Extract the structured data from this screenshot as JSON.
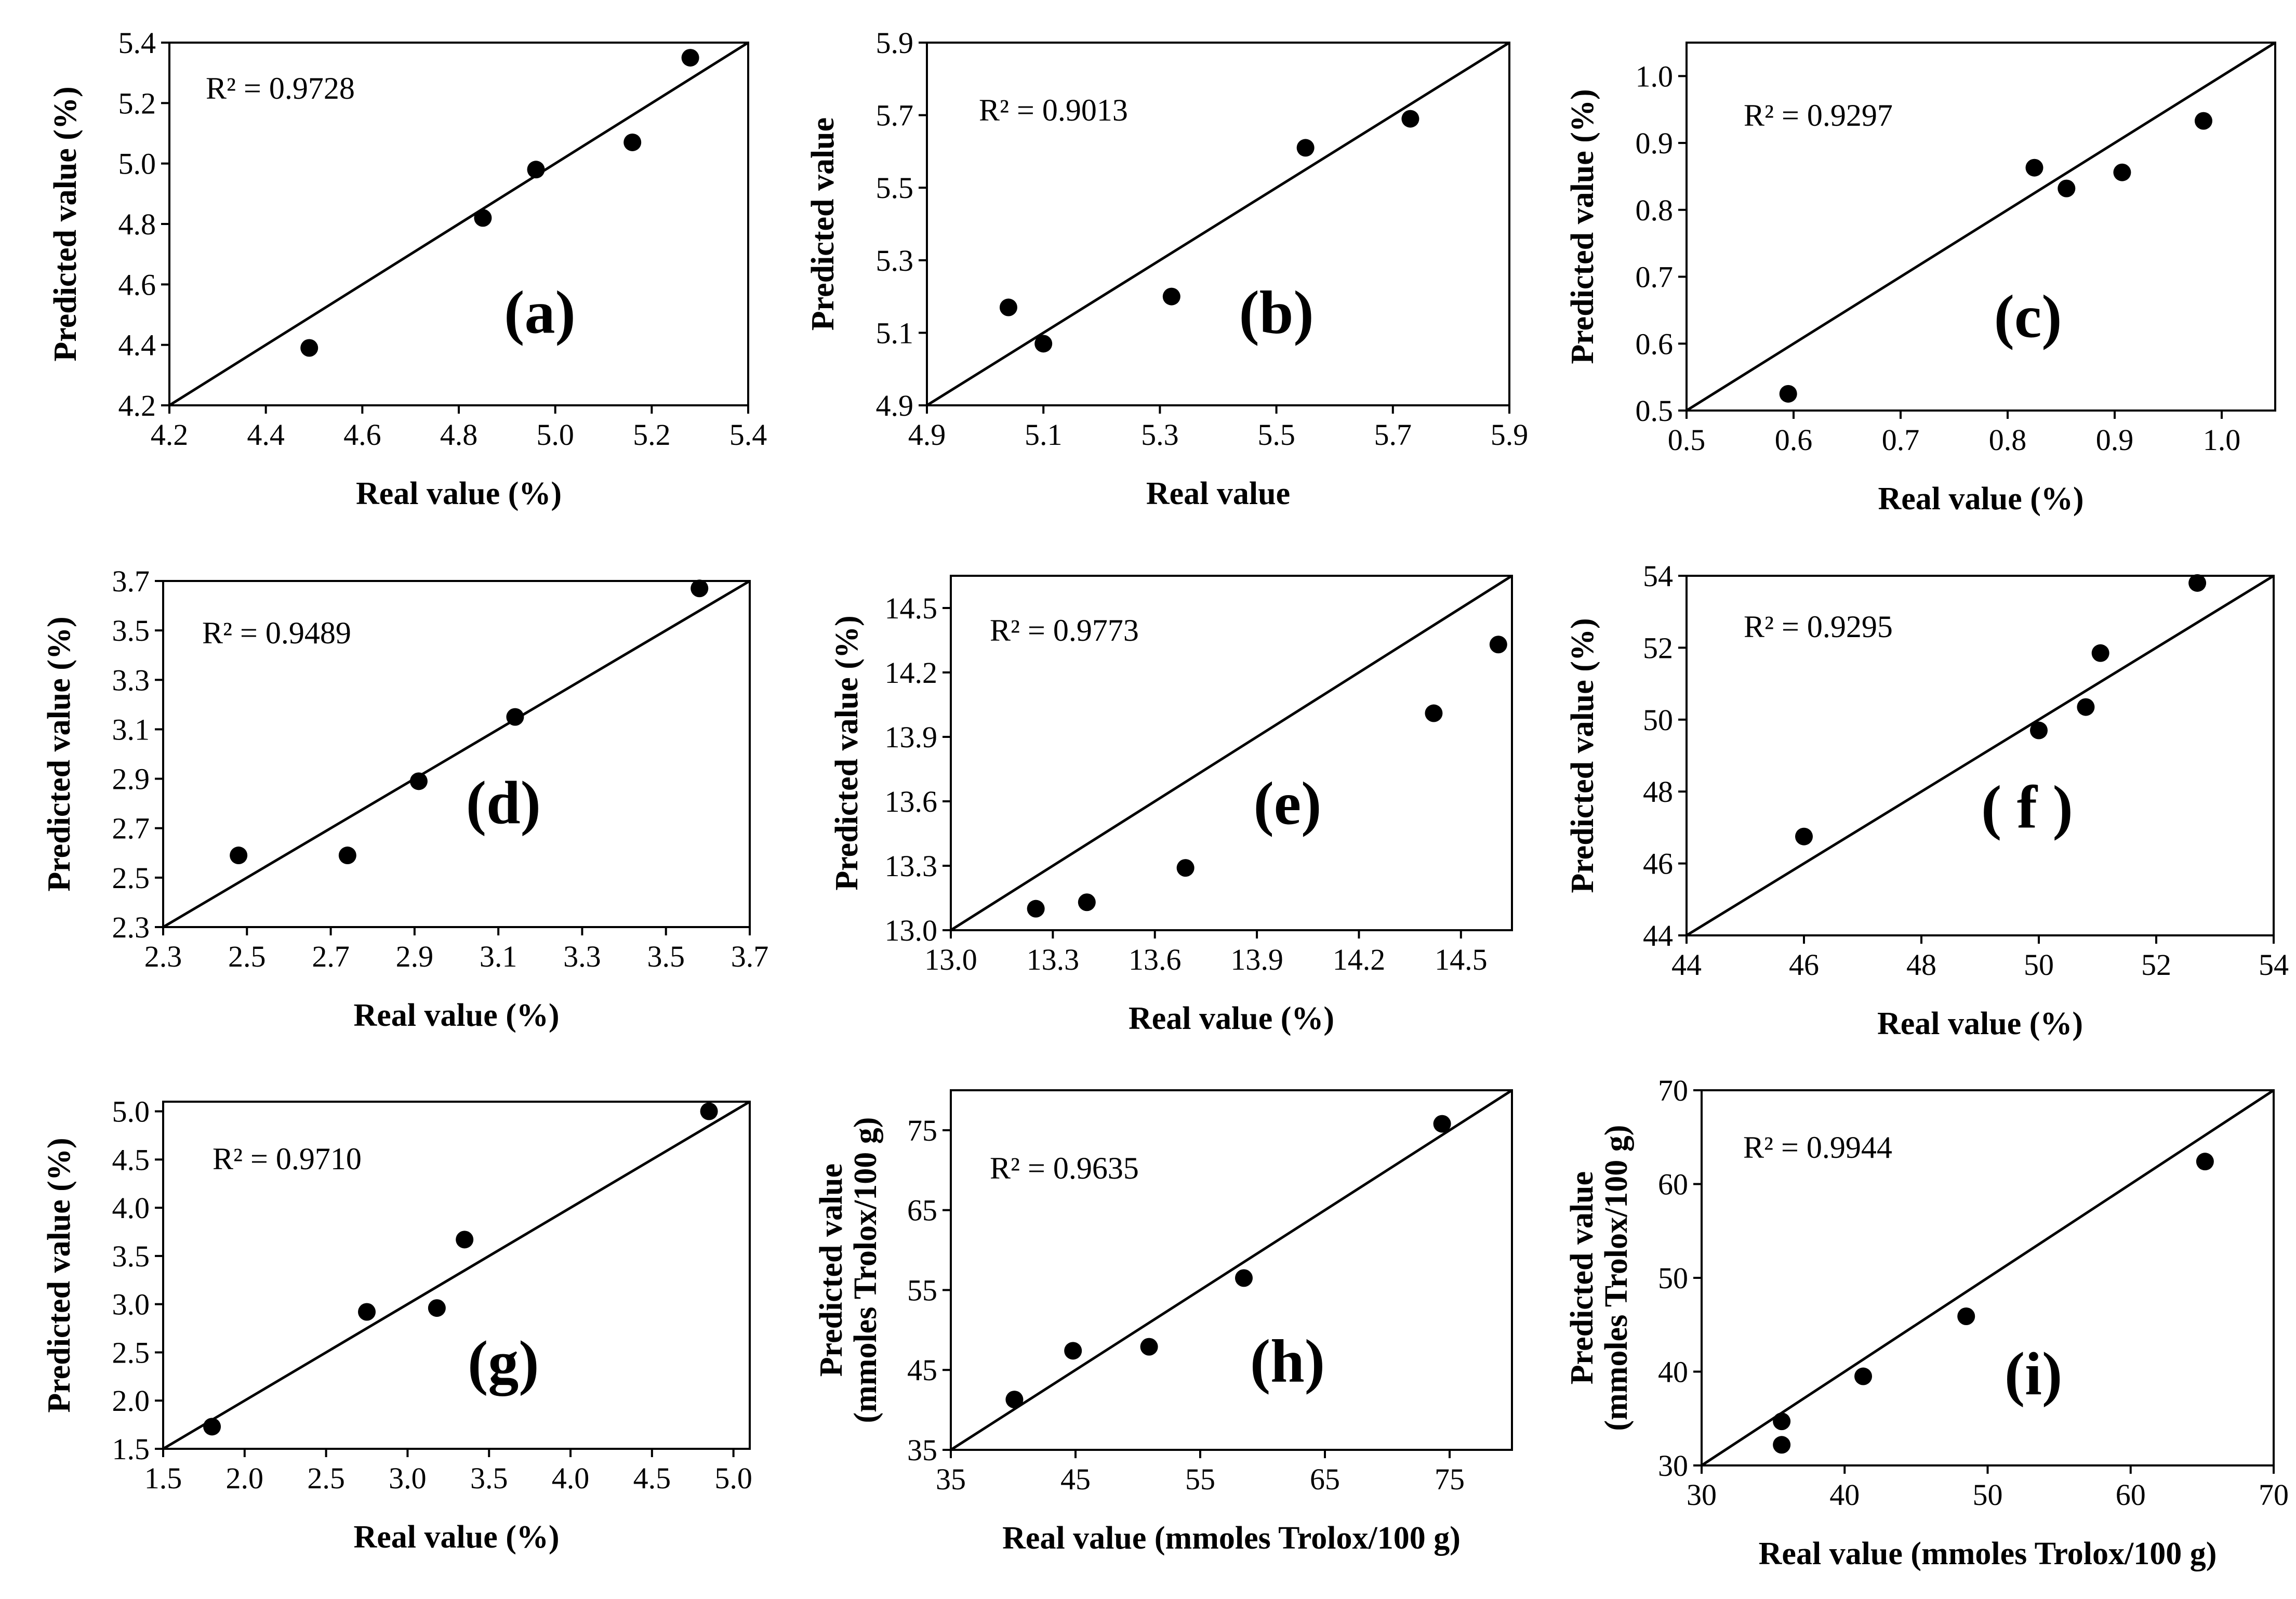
{
  "figure": {
    "marker_color": "#000000",
    "line_color": "#000000",
    "background": "#ffffff"
  },
  "chart_data": [
    {
      "type": "scatter",
      "panel": "(a)",
      "r2": "R² = 0.9728",
      "xlabel": "Real value (%)",
      "ylabel": "Predicted value (%)",
      "xlim": [
        4.2,
        5.4
      ],
      "ylim": [
        4.2,
        5.4
      ],
      "xticks": [
        "4.2",
        "4.4",
        "4.6",
        "4.8",
        "5.0",
        "5.2",
        "5.4"
      ],
      "yticks": [
        "4.2",
        "4.4",
        "4.6",
        "4.8",
        "5.0",
        "5.2",
        "5.4"
      ],
      "x": [
        4.49,
        4.85,
        4.96,
        5.16,
        5.28
      ],
      "y": [
        4.39,
        4.82,
        4.98,
        5.07,
        5.35
      ],
      "reference_line": "y = x"
    },
    {
      "type": "scatter",
      "panel": "(b)",
      "r2": "R² = 0.9013",
      "xlabel": "Real value",
      "ylabel": "Predicted value",
      "xlim": [
        4.9,
        5.9
      ],
      "ylim": [
        4.9,
        5.9
      ],
      "xticks": [
        "4.9",
        "5.1",
        "5.3",
        "5.5",
        "5.7",
        "5.9"
      ],
      "yticks": [
        "4.9",
        "5.1",
        "5.3",
        "5.5",
        "5.7",
        "5.9"
      ],
      "x": [
        5.04,
        5.1,
        5.32,
        5.55,
        5.73
      ],
      "y": [
        5.17,
        5.07,
        5.2,
        5.61,
        5.69
      ],
      "reference_line": "y = x"
    },
    {
      "type": "scatter",
      "panel": "(c)",
      "r2": "R² = 0.9297",
      "xlabel": "Real value (%)",
      "ylabel": "Predicted value (%)",
      "xlim": [
        0.5,
        1.05
      ],
      "ylim": [
        0.5,
        1.05
      ],
      "xticks": [
        "0.5",
        "0.6",
        "0.7",
        "0.8",
        "0.9",
        "1.0"
      ],
      "yticks": [
        "0.5",
        "0.6",
        "0.7",
        "0.8",
        "0.9",
        "1.0"
      ],
      "x": [
        0.595,
        0.825,
        0.855,
        0.907,
        0.983
      ],
      "y": [
        0.525,
        0.863,
        0.832,
        0.856,
        0.933
      ],
      "reference_line": "y = x"
    },
    {
      "type": "scatter",
      "panel": "(d)",
      "r2": "R² = 0.9489",
      "xlabel": "Real value (%)",
      "ylabel": "Predicted value (%)",
      "xlim": [
        2.3,
        3.7
      ],
      "ylim": [
        2.3,
        3.7
      ],
      "xticks": [
        "2.3",
        "2.5",
        "2.7",
        "2.9",
        "3.1",
        "3.3",
        "3.5",
        "3.7"
      ],
      "yticks": [
        "2.3",
        "2.5",
        "2.7",
        "2.9",
        "3.1",
        "3.3",
        "3.5",
        "3.7"
      ],
      "x": [
        2.48,
        2.74,
        2.91,
        3.14,
        3.58
      ],
      "y": [
        2.59,
        2.59,
        2.89,
        3.15,
        3.67
      ],
      "reference_line": "y = x"
    },
    {
      "type": "scatter",
      "panel": "(e)",
      "r2": "R² = 0.9773",
      "xlabel": "Real value (%)",
      "ylabel": "Predicted value (%)",
      "xlim": [
        13.0,
        14.65
      ],
      "ylim": [
        13.0,
        14.65
      ],
      "xticks": [
        "13.0",
        "13.3",
        "13.6",
        "13.9",
        "14.2",
        "14.5"
      ],
      "yticks": [
        "13.0",
        "13.3",
        "13.6",
        "13.9",
        "14.2",
        "14.5"
      ],
      "x": [
        13.25,
        13.4,
        13.69,
        14.42,
        14.61
      ],
      "y": [
        13.1,
        13.13,
        13.29,
        14.01,
        14.33
      ],
      "reference_line": "y = x"
    },
    {
      "type": "scatter",
      "panel": "( f )",
      "r2": "R² = 0.9295",
      "xlabel": "Real value (%)",
      "ylabel": "Predicted value (%)",
      "xlim": [
        44,
        54
      ],
      "ylim": [
        44,
        54
      ],
      "xticks": [
        "44",
        "46",
        "48",
        "50",
        "52",
        "54"
      ],
      "yticks": [
        "44",
        "46",
        "48",
        "50",
        "52",
        "54"
      ],
      "x": [
        46.0,
        50.0,
        50.8,
        51.05,
        52.7
      ],
      "y": [
        46.75,
        49.7,
        50.35,
        51.85,
        53.8
      ],
      "reference_line": "y = x"
    },
    {
      "type": "scatter",
      "panel": "(g)",
      "r2": "R² = 0.9710",
      "xlabel": "Real value (%)",
      "ylabel": "Predicted value (%)",
      "xlim": [
        1.5,
        5.1
      ],
      "ylim": [
        1.5,
        5.1
      ],
      "xticks": [
        "1.5",
        "2.0",
        "2.5",
        "3.0",
        "3.5",
        "4.0",
        "4.5",
        "5.0"
      ],
      "yticks": [
        "1.5",
        "2.0",
        "2.5",
        "3.0",
        "3.5",
        "4.0",
        "4.5",
        "5.0"
      ],
      "x": [
        1.8,
        2.75,
        3.18,
        3.35,
        4.85
      ],
      "y": [
        1.73,
        2.92,
        2.96,
        3.67,
        5.0
      ],
      "reference_line": "y = x"
    },
    {
      "type": "scatter",
      "panel": "(h)",
      "r2": "R² = 0.9635",
      "xlabel": "Real value (mmoles Trolox/100 g)",
      "ylabel": [
        "Predicted value",
        "(mmoles Trolox/100 g)"
      ],
      "xlim": [
        35,
        80
      ],
      "ylim": [
        35,
        80
      ],
      "xticks": [
        "35",
        "45",
        "55",
        "65",
        "75"
      ],
      "yticks": [
        "35",
        "45",
        "55",
        "65",
        "75"
      ],
      "x": [
        40.1,
        44.8,
        50.9,
        58.5,
        74.4
      ],
      "y": [
        41.3,
        47.4,
        47.9,
        56.5,
        75.8
      ],
      "reference_line": "y = x"
    },
    {
      "type": "scatter",
      "panel": "(i)",
      "r2": "R² = 0.9944",
      "xlabel": "Real value (mmoles Trolox/100 g)",
      "ylabel": [
        "Predicted value",
        "(mmoles Trolox/100 g)"
      ],
      "xlim": [
        30,
        70
      ],
      "ylim": [
        30,
        70
      ],
      "xticks": [
        "30",
        "40",
        "50",
        "60",
        "70"
      ],
      "yticks": [
        "30",
        "40",
        "50",
        "60",
        "70"
      ],
      "x": [
        35.6,
        35.6,
        41.3,
        48.5,
        65.2
      ],
      "y": [
        32.2,
        34.7,
        39.5,
        45.9,
        62.4
      ],
      "reference_line": "y = x"
    }
  ]
}
